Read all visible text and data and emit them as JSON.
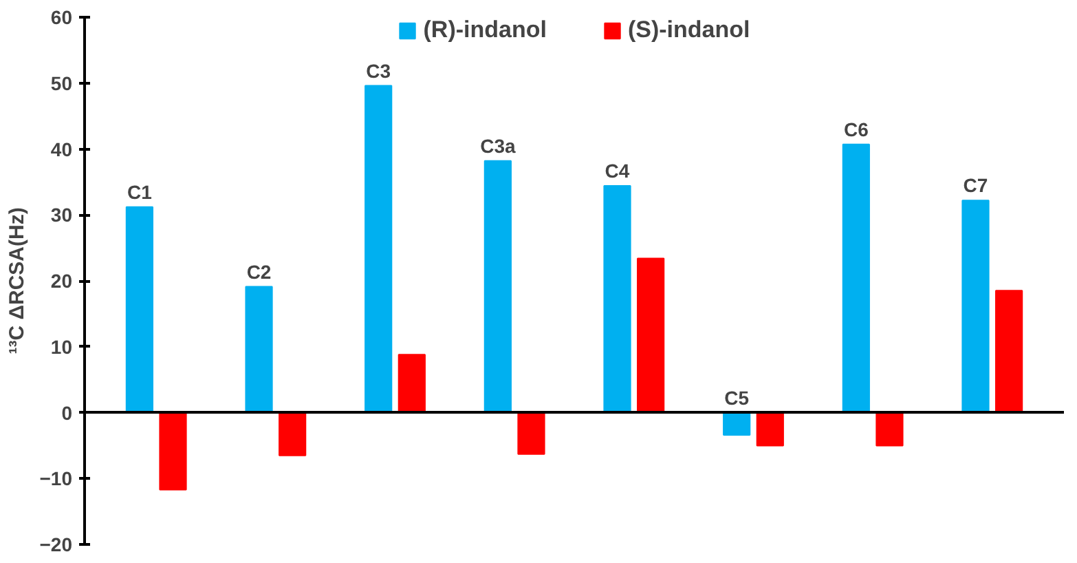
{
  "chart_data": {
    "type": "bar",
    "ylabel": "¹³C ΔRCSA(Hz)",
    "categories": [
      "C1",
      "C2",
      "C3",
      "C3a",
      "C4",
      "C5",
      "C6",
      "C7"
    ],
    "series": [
      {
        "name": "(R)-indanol",
        "color": "#00b0f0",
        "values": [
          31.2,
          19.1,
          49.6,
          38.2,
          34.4,
          -3.4,
          40.7,
          32.2
        ]
      },
      {
        "name": "(S)-indanol",
        "color": "#ff0000",
        "values": [
          -11.7,
          -6.5,
          8.8,
          -6.3,
          23.4,
          -5.0,
          -5.0,
          18.5
        ]
      }
    ],
    "ylim": [
      -20,
      60
    ],
    "yticks": [
      -20,
      -10,
      0,
      10,
      20,
      30,
      40,
      50,
      60
    ],
    "legend": "top",
    "tick_labels": "y"
  }
}
